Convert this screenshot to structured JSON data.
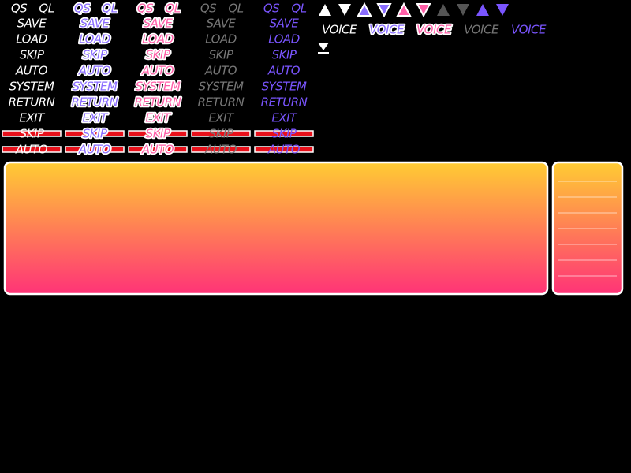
{
  "button_columns": [
    {
      "qs": "QS",
      "ql": "QL",
      "items": [
        "SAVE",
        "LOAD",
        "SKIP",
        "AUTO",
        "SYSTEM",
        "RETURN",
        "EXIT",
        "SKIP",
        "AUTO"
      ]
    },
    {
      "qs": "QS",
      "ql": "QL",
      "items": [
        "SAVE",
        "LOAD",
        "SKIP",
        "AUTO",
        "SYSTEM",
        "RETURN",
        "EXIT",
        "SKIP",
        "AUTO"
      ]
    },
    {
      "qs": "QS",
      "ql": "QL",
      "items": [
        "SAVE",
        "LOAD",
        "SKIP",
        "AUTO",
        "SYSTEM",
        "RETURN",
        "EXIT",
        "SKIP",
        "AUTO"
      ]
    },
    {
      "qs": "QS",
      "ql": "QL",
      "items": [
        "SAVE",
        "LOAD",
        "SKIP",
        "AUTO",
        "SYSTEM",
        "RETURN",
        "EXIT",
        "SKIP",
        "AUTO"
      ]
    },
    {
      "qs": "QS",
      "ql": "QL",
      "items": [
        "SAVE",
        "LOAD",
        "SKIP",
        "AUTO",
        "SYSTEM",
        "RETURN",
        "EXIT",
        "SKIP",
        "AUTO"
      ]
    }
  ],
  "voice_buttons": [
    "VOICE",
    "VOICE",
    "VOICE",
    "VOICE",
    "VOICE"
  ]
}
